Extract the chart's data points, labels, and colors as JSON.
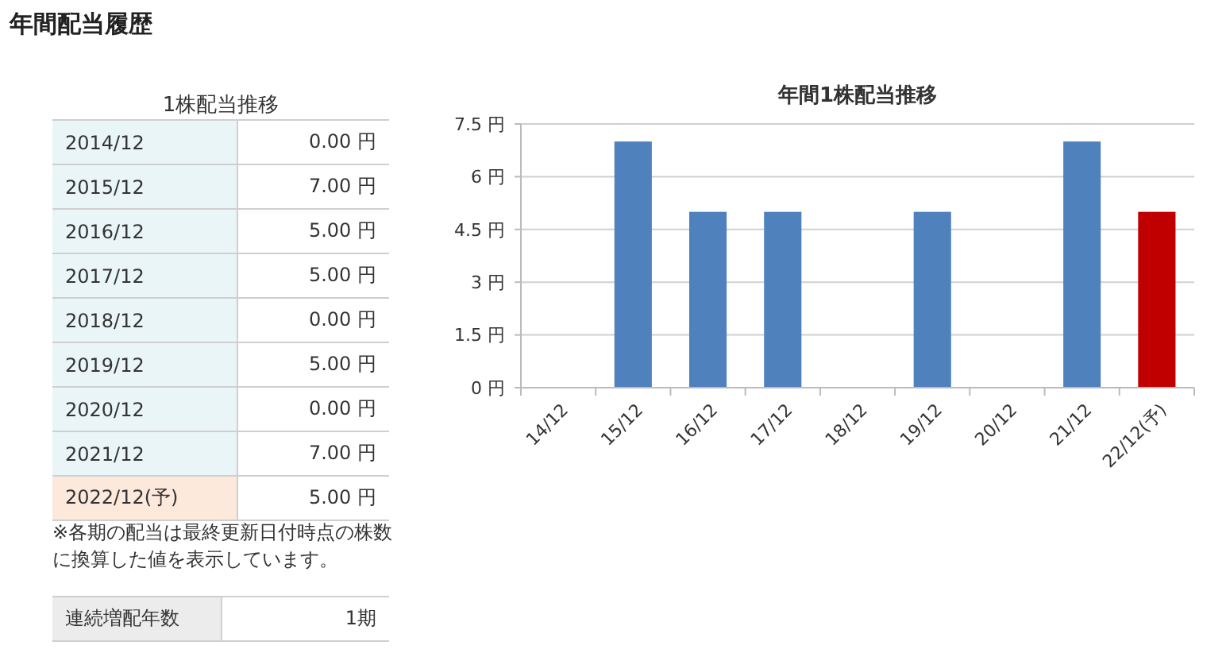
{
  "chart_data": [
    {
      "type": "other",
      "title": "年間配当履歴",
      "subtitle": "1株配当推移",
      "categories": [
        "2014/12",
        "2015/12",
        "2016/12",
        "2017/12",
        "2018/12",
        "2019/12",
        "2020/12",
        "2021/12",
        "2022/12(予)"
      ],
      "value_labels": [
        "0.00 円",
        "7.00 円",
        "5.00 円",
        "5.00 円",
        "0.00 円",
        "5.00 円",
        "0.00 円",
        "7.00 円",
        "5.00 円"
      ],
      "annotations": [
        "※各期の配当は最終更新日付時点の株数に換算した値を表示しています。",
        "連続増配年数",
        "1期"
      ]
    },
    {
      "type": "bar",
      "title": "年間1株配当推移",
      "categories": [
        "14/12",
        "15/12",
        "16/12",
        "17/12",
        "18/12",
        "19/12",
        "20/12",
        "21/12",
        "22/12(予)"
      ],
      "values": [
        0,
        7,
        5,
        5,
        0,
        5,
        0,
        7,
        5
      ],
      "colors": [
        "#4f81bd",
        "#4f81bd",
        "#4f81bd",
        "#4f81bd",
        "#4f81bd",
        "#4f81bd",
        "#4f81bd",
        "#4f81bd",
        "#c00000"
      ],
      "ylim": [
        0,
        7.5
      ],
      "yticks": [
        {
          "value": 0,
          "label": "0 円"
        },
        {
          "value": 1.5,
          "label": "1.5 円"
        },
        {
          "value": 3,
          "label": "3 円"
        },
        {
          "value": 4.5,
          "label": "4.5 円"
        },
        {
          "value": 6,
          "label": "6 円"
        },
        {
          "value": 7.5,
          "label": "7.5 円"
        }
      ],
      "grid": "y"
    }
  ]
}
